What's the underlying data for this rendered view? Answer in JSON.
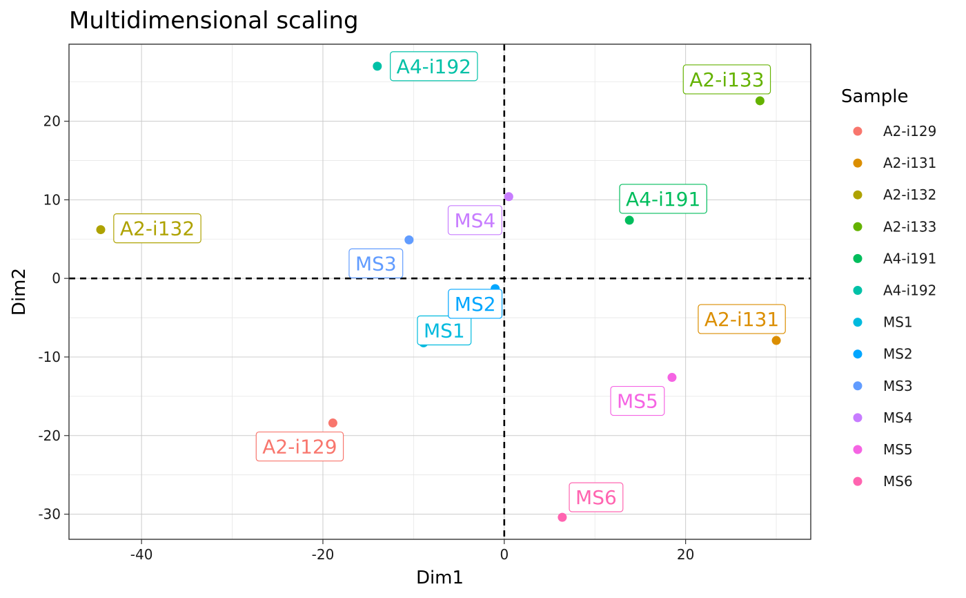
{
  "chart_data": {
    "type": "scatter",
    "title": "Multidimensional scaling",
    "xlabel": "Dim1",
    "ylabel": "Dim2",
    "xlim": [
      -48,
      33.8
    ],
    "ylim": [
      -33.2,
      29.8
    ],
    "x_ticks": [
      -40,
      -20,
      0,
      20
    ],
    "y_ticks": [
      -30,
      -20,
      -10,
      0,
      10,
      20
    ],
    "x_tick_labels": [
      "-40",
      "-20",
      "0",
      "20"
    ],
    "y_tick_labels": [
      "-30",
      "-20",
      "-10",
      "0",
      "10",
      "20"
    ],
    "grid": true,
    "reference_lines": {
      "x": 0,
      "y": 0,
      "style": "dashed"
    },
    "legend": {
      "title": "Sample",
      "position": "right"
    },
    "points": [
      {
        "name": "A2-i129",
        "x": -18.9,
        "y": -18.4,
        "color": "#F8766D"
      },
      {
        "name": "A2-i131",
        "x": 30.0,
        "y": -7.9,
        "color": "#DB8E00"
      },
      {
        "name": "A2-i132",
        "x": -44.5,
        "y": 6.2,
        "color": "#AEA200"
      },
      {
        "name": "A2-i133",
        "x": 28.2,
        "y": 22.6,
        "color": "#64B200"
      },
      {
        "name": "A4-i191",
        "x": 13.8,
        "y": 7.4,
        "color": "#00BD5C"
      },
      {
        "name": "A4-i192",
        "x": -14.0,
        "y": 27.0,
        "color": "#00C1A7"
      },
      {
        "name": "MS1",
        "x": -8.9,
        "y": -8.2,
        "color": "#00BADE"
      },
      {
        "name": "MS2",
        "x": -1.0,
        "y": -1.3,
        "color": "#00A6FF"
      },
      {
        "name": "MS3",
        "x": -10.5,
        "y": 4.9,
        "color": "#619CFF"
      },
      {
        "name": "MS4",
        "x": 0.5,
        "y": 10.4,
        "color": "#C77CFF"
      },
      {
        "name": "MS5",
        "x": 18.5,
        "y": -12.6,
        "color": "#F564E3"
      },
      {
        "name": "MS6",
        "x": 6.4,
        "y": -30.4,
        "color": "#FF64B0"
      }
    ]
  }
}
